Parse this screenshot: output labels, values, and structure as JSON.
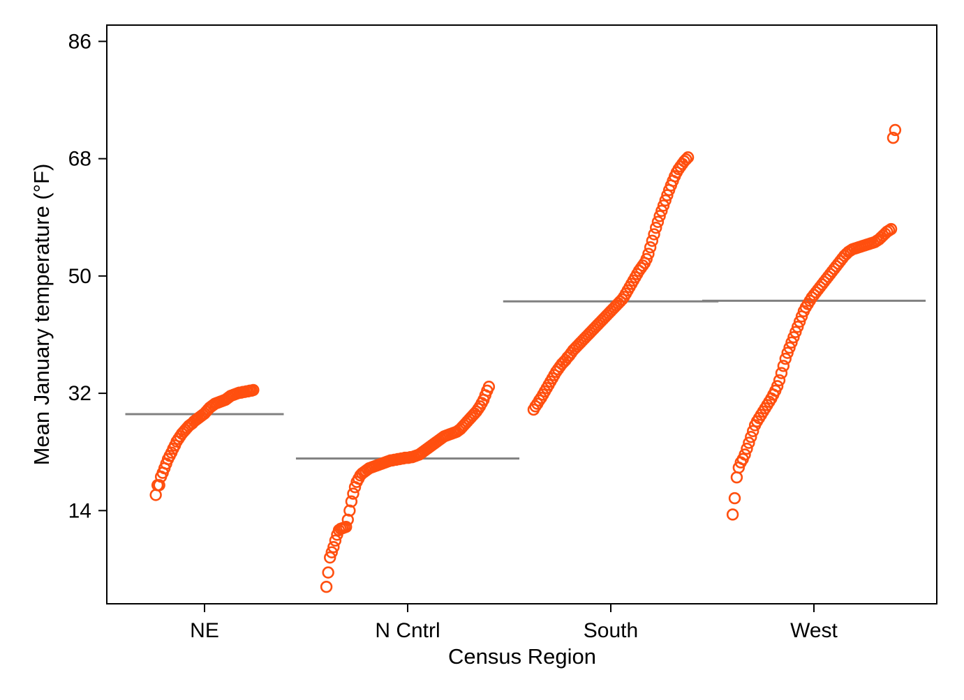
{
  "chart_data": {
    "type": "scatter",
    "title": "",
    "xlabel": "Census Region",
    "ylabel": "Mean January temperature (°F)",
    "ylim": [
      -0.3,
      88.5
    ],
    "yticks": [
      14,
      32,
      50,
      68,
      86
    ],
    "categories": [
      "NE",
      "N Cntrl",
      "South",
      "West"
    ],
    "grid": false,
    "legend": "none",
    "colors": {
      "points": "#FF4F0F",
      "mean_line": "#808080",
      "axis": "#000000"
    },
    "series": [
      {
        "category": "NE",
        "mean": 28.8,
        "jitter_width": 0.24,
        "values": [
          16.4,
          17.9,
          17.9,
          19.2,
          19.8,
          20.5,
          21.2,
          21.9,
          22.4,
          22.9,
          23.5,
          24.0,
          24.6,
          25.0,
          25.4,
          25.8,
          26.1,
          26.4,
          26.7,
          27.0,
          27.2,
          27.4,
          27.7,
          27.9,
          28.1,
          28.3,
          28.5,
          28.7,
          28.9,
          29.2,
          29.5,
          29.8,
          30.0,
          30.2,
          30.4,
          30.5,
          30.6,
          30.7,
          30.8,
          30.9,
          31.0,
          31.2,
          31.4,
          31.6,
          31.7,
          31.8,
          31.9,
          32.0,
          32.1,
          32.1,
          32.2,
          32.2,
          32.3,
          32.3,
          32.4,
          32.4,
          32.5
        ]
      },
      {
        "category": "N Cntrl",
        "mean": 22.0,
        "jitter_width": 0.4,
        "values": [
          2.3,
          4.5,
          6.8,
          7.6,
          8.4,
          9.4,
          10.3,
          11.0,
          11.2,
          11.3,
          11.4,
          11.5,
          12.6,
          14.0,
          15.4,
          16.6,
          17.6,
          18.4,
          18.9,
          19.4,
          19.7,
          19.9,
          20.1,
          20.3,
          20.5,
          20.6,
          20.7,
          20.8,
          20.9,
          21.0,
          21.1,
          21.2,
          21.3,
          21.4,
          21.5,
          21.6,
          21.7,
          21.7,
          21.8,
          21.8,
          21.9,
          21.9,
          22.0,
          22.0,
          22.1,
          22.1,
          22.1,
          22.2,
          22.2,
          22.3,
          22.4,
          22.5,
          22.6,
          22.8,
          23.0,
          23.2,
          23.4,
          23.6,
          23.8,
          24.0,
          24.2,
          24.4,
          24.6,
          24.8,
          25.0,
          25.2,
          25.4,
          25.5,
          25.6,
          25.7,
          25.8,
          25.9,
          26.0,
          26.1,
          26.3,
          26.5,
          26.8,
          27.1,
          27.4,
          27.7,
          28.0,
          28.3,
          28.6,
          28.9,
          29.2,
          29.6,
          30.0,
          30.5,
          31.0,
          31.7,
          32.4,
          33.0
        ]
      },
      {
        "category": "South",
        "mean": 46.1,
        "jitter_width": 0.38,
        "values": [
          29.5,
          30.0,
          30.4,
          30.9,
          31.3,
          31.8,
          32.3,
          32.8,
          33.3,
          33.8,
          34.3,
          34.8,
          35.3,
          35.7,
          36.1,
          36.5,
          36.8,
          37.1,
          37.5,
          37.8,
          38.2,
          38.6,
          38.9,
          39.2,
          39.5,
          39.8,
          40.1,
          40.4,
          40.7,
          41.0,
          41.3,
          41.6,
          41.9,
          42.2,
          42.5,
          42.8,
          43.1,
          43.4,
          43.7,
          44.0,
          44.3,
          44.6,
          44.9,
          45.2,
          45.5,
          45.8,
          46.1,
          46.4,
          46.8,
          47.3,
          47.8,
          48.3,
          48.8,
          49.3,
          49.8,
          50.3,
          50.8,
          51.2,
          51.6,
          52.0,
          52.6,
          53.4,
          54.4,
          55.4,
          56.4,
          57.4,
          58.3,
          59.2,
          60.0,
          60.8,
          61.6,
          62.4,
          63.2,
          63.9,
          64.6,
          65.3,
          65.9,
          66.4,
          66.8,
          67.2,
          67.6,
          67.9,
          68.2
        ]
      },
      {
        "category": "West",
        "mean": 46.2,
        "jitter_width": 0.4,
        "values": [
          13.4,
          15.9,
          19.1,
          20.6,
          21.4,
          21.9,
          22.6,
          23.5,
          24.4,
          25.3,
          26.2,
          27.1,
          27.7,
          28.2,
          28.7,
          29.2,
          29.7,
          30.2,
          30.7,
          31.2,
          31.8,
          32.4,
          33.1,
          34.0,
          35.1,
          36.2,
          37.3,
          38.2,
          39.0,
          39.8,
          40.6,
          41.4,
          42.2,
          43.0,
          43.8,
          44.6,
          45.2,
          45.7,
          46.2,
          46.7,
          47.1,
          47.5,
          47.9,
          48.3,
          48.7,
          49.1,
          49.5,
          49.9,
          50.3,
          50.7,
          51.1,
          51.5,
          51.9,
          52.3,
          52.7,
          53.1,
          53.4,
          53.7,
          53.9,
          54.1,
          54.2,
          54.3,
          54.4,
          54.5,
          54.6,
          54.7,
          54.8,
          54.9,
          55.0,
          55.1,
          55.2,
          55.4,
          55.6,
          55.9,
          56.2,
          56.5,
          56.8,
          57.0,
          57.2,
          71.2,
          72.4
        ]
      }
    ]
  }
}
